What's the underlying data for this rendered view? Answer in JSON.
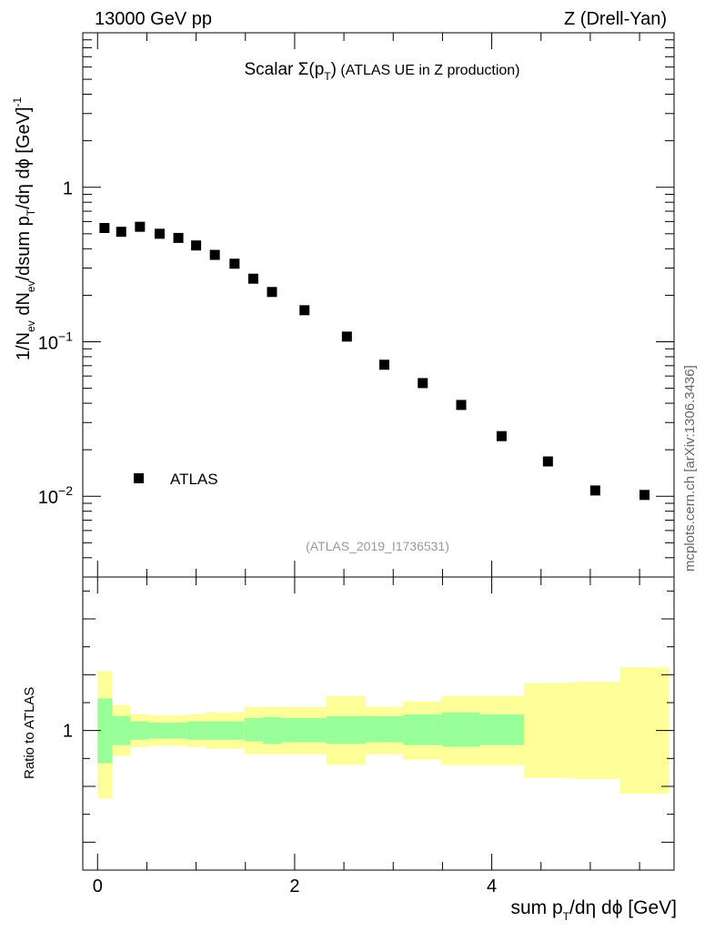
{
  "header": {
    "left": "13000 GeV pp",
    "right": "Z (Drell-Yan)"
  },
  "title": {
    "prefix": "Scalar ",
    "sigma": "Σ(p",
    "sigma_sub": "T",
    "sigma_close": ")",
    "rest": " (ATLAS UE in Z production)"
  },
  "side_label": "mcplots.cern.ch [arXiv:1306.3436]",
  "analysis_tag": "(ATLAS_2019_I1736531)",
  "ylabel_top": {
    "p1": "1/N",
    "s1": "ev",
    "p2": " dN",
    "s2": "ev",
    "p3": "/dsum p",
    "s3": "T",
    "p4": "/dη dϕ  [GeV]",
    "sup": "-1"
  },
  "ylabel_bottom": "Ratio to ATLAS",
  "xlabel": {
    "p1": "sum p",
    "s1": "T",
    "p2": "/dη dϕ [GeV]"
  },
  "chart_data": {
    "type": "scatter",
    "x_axis": {
      "range": [
        -0.15,
        5.85
      ],
      "ticks": [
        0,
        2,
        4
      ],
      "tick_labels": [
        "0",
        "2",
        "4"
      ]
    },
    "main": {
      "y_scale": "log",
      "y_range": [
        0.003,
        10
      ],
      "tick_labels": [
        {
          "value": 1,
          "label": "1"
        },
        {
          "value": 0.1,
          "label": "10",
          "sup": "−1"
        },
        {
          "value": 0.01,
          "label": "10",
          "sup": "−2"
        }
      ],
      "legend": {
        "position": "bottom-left",
        "entries": [
          "ATLAS"
        ]
      },
      "series": [
        {
          "name": "ATLAS",
          "marker": "square",
          "x": [
            0.07,
            0.24,
            0.43,
            0.63,
            0.82,
            1.0,
            1.19,
            1.39,
            1.58,
            1.77,
            2.1,
            2.53,
            2.91,
            3.3,
            3.69,
            4.1,
            4.57,
            5.05,
            5.55
          ],
          "y": [
            0.545,
            0.515,
            0.555,
            0.5,
            0.47,
            0.42,
            0.365,
            0.32,
            0.256,
            0.21,
            0.16,
            0.108,
            0.071,
            0.054,
            0.039,
            0.0245,
            0.0168,
            0.0109,
            0.0102
          ]
        }
      ]
    },
    "ratio": {
      "y_range": [
        0.5,
        1.55
      ],
      "tick_labels": [
        {
          "value": 1,
          "label": "1"
        }
      ],
      "bands": [
        {
          "x0": 0.0,
          "x1": 0.15,
          "stat": [
            0.883,
            1.115
          ],
          "total": [
            0.757,
            1.213
          ]
        },
        {
          "x0": 0.15,
          "x1": 0.33,
          "stat": [
            0.948,
            1.052
          ],
          "total": [
            0.909,
            1.091
          ]
        },
        {
          "x0": 0.33,
          "x1": 0.52,
          "stat": [
            0.967,
            1.033
          ],
          "total": [
            0.941,
            1.059
          ]
        },
        {
          "x0": 0.52,
          "x1": 0.72,
          "stat": [
            0.971,
            1.029
          ],
          "total": [
            0.945,
            1.055
          ]
        },
        {
          "x0": 0.72,
          "x1": 0.91,
          "stat": [
            0.971,
            1.029
          ],
          "total": [
            0.945,
            1.055
          ]
        },
        {
          "x0": 0.91,
          "x1": 1.1,
          "stat": [
            0.967,
            1.033
          ],
          "total": [
            0.941,
            1.059
          ]
        },
        {
          "x0": 1.1,
          "x1": 1.29,
          "stat": [
            0.967,
            1.033
          ],
          "total": [
            0.935,
            1.065
          ]
        },
        {
          "x0": 1.29,
          "x1": 1.49,
          "stat": [
            0.967,
            1.033
          ],
          "total": [
            0.935,
            1.065
          ]
        },
        {
          "x0": 1.49,
          "x1": 1.68,
          "stat": [
            0.961,
            1.045
          ],
          "total": [
            0.915,
            1.085
          ]
        },
        {
          "x0": 1.68,
          "x1": 1.87,
          "stat": [
            0.952,
            1.048
          ],
          "total": [
            0.915,
            1.085
          ]
        },
        {
          "x0": 1.87,
          "x1": 2.32,
          "stat": [
            0.958,
            1.045
          ],
          "total": [
            0.915,
            1.085
          ]
        },
        {
          "x0": 2.32,
          "x1": 2.72,
          "stat": [
            0.952,
            1.052
          ],
          "total": [
            0.877,
            1.123
          ]
        },
        {
          "x0": 2.72,
          "x1": 3.1,
          "stat": [
            0.958,
            1.052
          ],
          "total": [
            0.915,
            1.085
          ]
        },
        {
          "x0": 3.1,
          "x1": 3.49,
          "stat": [
            0.948,
            1.058
          ],
          "total": [
            0.896,
            1.104
          ]
        },
        {
          "x0": 3.49,
          "x1": 3.88,
          "stat": [
            0.942,
            1.065
          ],
          "total": [
            0.876,
            1.124
          ]
        },
        {
          "x0": 3.88,
          "x1": 4.33,
          "stat": [
            0.948,
            1.058
          ],
          "total": [
            0.876,
            1.124
          ]
        },
        {
          "x0": 4.33,
          "x1": 4.81,
          "total": [
            0.83,
            1.17
          ]
        },
        {
          "x0": 4.81,
          "x1": 5.3,
          "total": [
            0.826,
            1.174
          ]
        },
        {
          "x0": 5.3,
          "x1": 5.8,
          "total": [
            0.774,
            1.226
          ]
        }
      ],
      "colors": {
        "stat": "#99ff99",
        "total": "#ffff99"
      }
    }
  }
}
